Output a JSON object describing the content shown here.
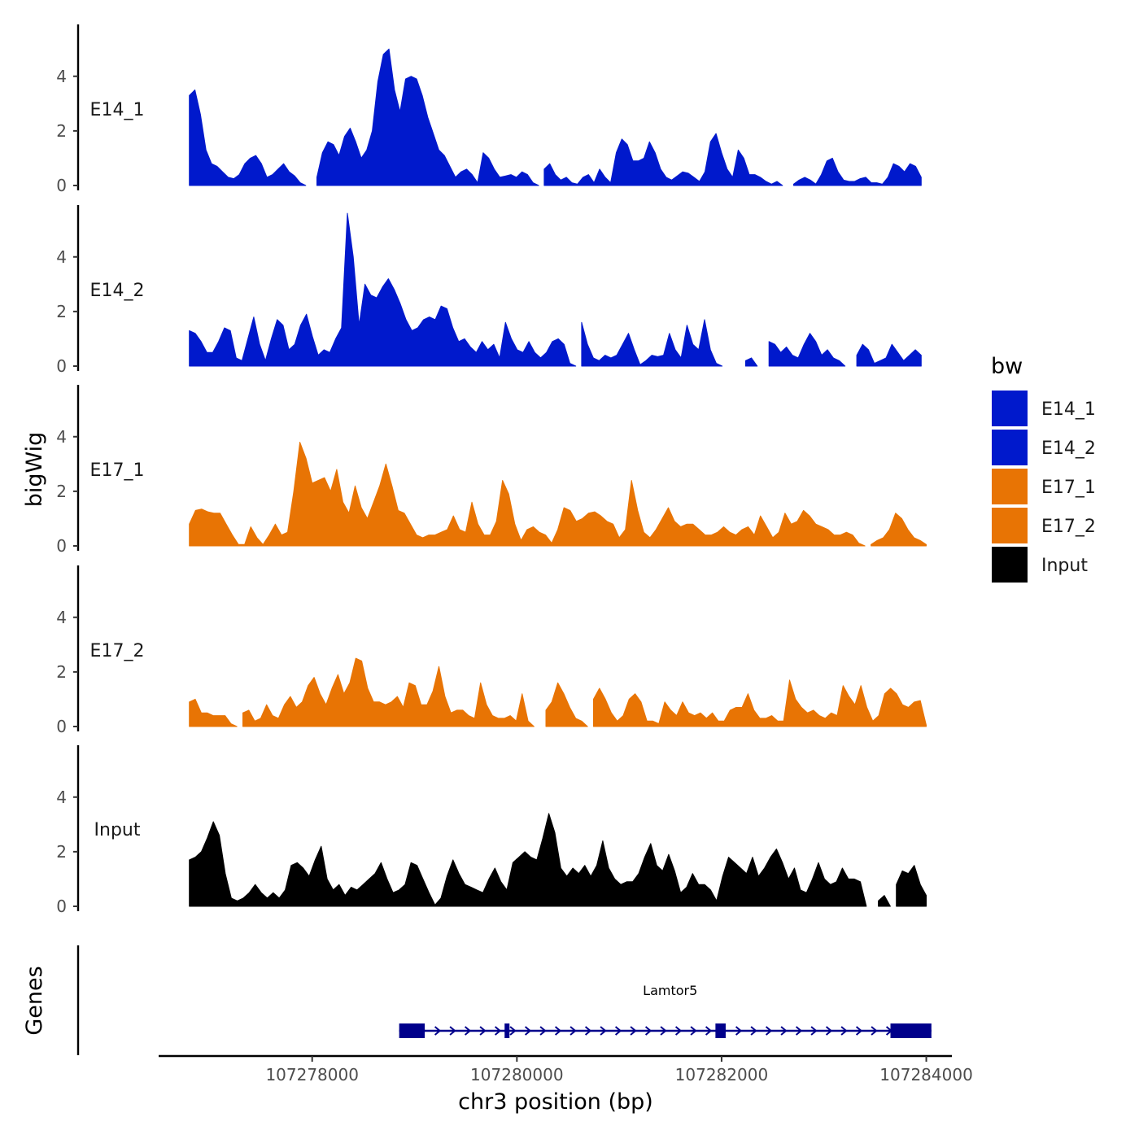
{
  "chart_data": {
    "type": "area",
    "region": "chr3",
    "xlabel": "chr3 position (bp)",
    "ylabel": "bigWig",
    "xlim": [
      107276500,
      107284250
    ],
    "ylim": [
      0,
      5.9
    ],
    "x_ticks": [
      107278000,
      107280000,
      107282000,
      107284000
    ],
    "x_tick_labels": [
      "107278000",
      "107280000",
      "107282000",
      "107284000"
    ],
    "y_ticks": [
      0,
      2,
      4
    ],
    "y_tick_labels": [
      "0",
      "2",
      "4"
    ],
    "legend_title": "bw",
    "legend": [
      {
        "name": "E14_1",
        "color": "#0019cc"
      },
      {
        "name": "E14_2",
        "color": "#0019cc"
      },
      {
        "name": "E17_1",
        "color": "#e87404"
      },
      {
        "name": "E17_2",
        "color": "#e87404"
      },
      {
        "name": "Input",
        "color": "#000000"
      }
    ],
    "series": [
      {
        "name": "E14_1",
        "color": "#0019cc",
        "x_start": 107276800,
        "x_end": 107283950,
        "values": [
          3.3,
          3.5,
          2.6,
          1.3,
          0.8,
          0.7,
          0.5,
          0.3,
          0.25,
          0.4,
          0.8,
          1.0,
          1.1,
          0.8,
          0.3,
          0.4,
          0.6,
          0.8,
          0.5,
          0.35,
          0.1,
          0,
          0,
          0.3,
          1.2,
          1.6,
          1.5,
          1.1,
          1.8,
          2.1,
          1.6,
          1.0,
          1.3,
          2.0,
          3.8,
          4.8,
          5.0,
          3.5,
          2.7,
          3.9,
          4.0,
          3.9,
          3.3,
          2.5,
          1.9,
          1.3,
          1.1,
          0.7,
          0.3,
          0.5,
          0.6,
          0.4,
          0.1,
          1.2,
          1.0,
          0.6,
          0.3,
          0.35,
          0.4,
          0.3,
          0.5,
          0.4,
          0.1,
          0,
          0.6,
          0.8,
          0.4,
          0.2,
          0.3,
          0.1,
          0.05,
          0.3,
          0.4,
          0.1,
          0.6,
          0.3,
          0.1,
          1.2,
          1.7,
          1.5,
          0.9,
          0.9,
          1.0,
          1.6,
          1.2,
          0.6,
          0.3,
          0.2,
          0.35,
          0.5,
          0.45,
          0.3,
          0.15,
          0.5,
          1.6,
          1.9,
          1.2,
          0.6,
          0.3,
          1.3,
          1.0,
          0.4,
          0.4,
          0.3,
          0.15,
          0.05,
          0.15,
          0,
          0,
          0.05,
          0.2,
          0.3,
          0.2,
          0.05,
          0.4,
          0.9,
          1.0,
          0.5,
          0.2,
          0.15,
          0.15,
          0.25,
          0.3,
          0.1,
          0.1,
          0.05,
          0.3,
          0.8,
          0.7,
          0.5,
          0.8,
          0.7,
          0.3
        ]
      },
      {
        "name": "E14_2",
        "color": "#0019cc",
        "x_start": 107276800,
        "x_end": 107283950,
        "values": [
          1.3,
          1.2,
          0.9,
          0.5,
          0.5,
          0.9,
          1.4,
          1.3,
          0.3,
          0.2,
          1.0,
          1.8,
          0.8,
          0.2,
          1.0,
          1.7,
          1.5,
          0.6,
          0.8,
          1.5,
          1.9,
          1.1,
          0.4,
          0.6,
          0.5,
          1.0,
          1.4,
          5.6,
          4.0,
          1.5,
          3.0,
          2.6,
          2.5,
          2.9,
          3.2,
          2.8,
          2.3,
          1.7,
          1.3,
          1.4,
          1.7,
          1.8,
          1.7,
          2.2,
          2.1,
          1.4,
          0.9,
          1.0,
          0.7,
          0.5,
          0.9,
          0.6,
          0.8,
          0.3,
          1.6,
          1.0,
          0.6,
          0.5,
          0.9,
          0.5,
          0.3,
          0.5,
          0.9,
          1.0,
          0.8,
          0.1,
          0,
          1.6,
          0.8,
          0.3,
          0.2,
          0.4,
          0.3,
          0.4,
          0.8,
          1.2,
          0.6,
          0.05,
          0.2,
          0.4,
          0.35,
          0.4,
          1.2,
          0.6,
          0.3,
          1.5,
          0.8,
          0.6,
          1.7,
          0.6,
          0.1,
          0,
          0,
          0,
          0,
          0.2,
          0.3,
          0,
          0,
          0.9,
          0.8,
          0.5,
          0.7,
          0.4,
          0.3,
          0.8,
          1.2,
          0.9,
          0.4,
          0.6,
          0.3,
          0.2,
          0,
          0,
          0.4,
          0.8,
          0.6,
          0.1,
          0.2,
          0.3,
          0.8,
          0.5,
          0.2,
          0.4,
          0.6,
          0.4
        ]
      },
      {
        "name": "E17_1",
        "color": "#e87404",
        "x_start": 107276800,
        "x_end": 107284000,
        "values": [
          0.8,
          1.3,
          1.35,
          1.25,
          1.2,
          1.2,
          0.8,
          0.4,
          0.05,
          0.05,
          0.7,
          0.3,
          0.05,
          0.4,
          0.8,
          0.4,
          0.5,
          2.0,
          3.8,
          3.2,
          2.3,
          2.4,
          2.5,
          2.0,
          2.8,
          1.6,
          1.2,
          2.2,
          1.4,
          1.0,
          1.6,
          2.2,
          3.0,
          2.2,
          1.3,
          1.2,
          0.8,
          0.4,
          0.3,
          0.4,
          0.4,
          0.5,
          0.6,
          1.1,
          0.6,
          0.5,
          1.6,
          0.8,
          0.4,
          0.4,
          0.9,
          2.4,
          1.9,
          0.8,
          0.2,
          0.6,
          0.7,
          0.5,
          0.4,
          0.1,
          0.6,
          1.4,
          1.3,
          0.9,
          1.0,
          1.2,
          1.25,
          1.1,
          0.9,
          0.8,
          0.3,
          0.6,
          2.4,
          1.3,
          0.5,
          0.3,
          0.6,
          1.0,
          1.4,
          0.9,
          0.7,
          0.8,
          0.8,
          0.6,
          0.4,
          0.4,
          0.5,
          0.7,
          0.5,
          0.4,
          0.6,
          0.7,
          0.4,
          1.1,
          0.7,
          0.3,
          0.5,
          1.2,
          0.8,
          0.9,
          1.3,
          1.1,
          0.8,
          0.7,
          0.6,
          0.4,
          0.4,
          0.5,
          0.4,
          0.1,
          0,
          0.05,
          0.2,
          0.3,
          0.6,
          1.2,
          1.0,
          0.6,
          0.3,
          0.2,
          0.05
        ]
      },
      {
        "name": "E17_2",
        "color": "#e87404",
        "x_start": 107276800,
        "x_end": 107284000,
        "values": [
          0.9,
          1.0,
          0.5,
          0.5,
          0.4,
          0.4,
          0.4,
          0.1,
          0,
          0.5,
          0.6,
          0.2,
          0.3,
          0.8,
          0.4,
          0.3,
          0.8,
          1.1,
          0.7,
          0.9,
          1.5,
          1.8,
          1.2,
          0.8,
          1.4,
          1.9,
          1.2,
          1.6,
          2.5,
          2.4,
          1.4,
          0.9,
          0.9,
          0.8,
          0.9,
          1.1,
          0.7,
          1.6,
          1.5,
          0.8,
          0.8,
          1.3,
          2.2,
          1.1,
          0.5,
          0.6,
          0.6,
          0.4,
          0.3,
          1.6,
          0.8,
          0.4,
          0.3,
          0.3,
          0.4,
          0.2,
          1.2,
          0.2,
          0,
          0,
          0.6,
          0.9,
          1.6,
          1.2,
          0.7,
          0.3,
          0.2,
          0,
          1.0,
          1.4,
          1.0,
          0.5,
          0.2,
          0.4,
          1.0,
          1.2,
          0.9,
          0.2,
          0.2,
          0.1,
          0.9,
          0.6,
          0.4,
          0.9,
          0.5,
          0.4,
          0.5,
          0.3,
          0.5,
          0.2,
          0.2,
          0.6,
          0.7,
          0.7,
          1.2,
          0.6,
          0.3,
          0.3,
          0.4,
          0.2,
          0.2,
          1.7,
          1.0,
          0.7,
          0.5,
          0.6,
          0.4,
          0.3,
          0.5,
          0.4,
          1.5,
          1.1,
          0.8,
          1.5,
          0.7,
          0.2,
          0.4,
          1.2,
          1.4,
          1.2,
          0.8,
          0.7,
          0.9,
          0.95,
          0.05
        ]
      },
      {
        "name": "Input",
        "color": "#000000",
        "x_start": 107276800,
        "x_end": 107284000,
        "values": [
          1.7,
          1.8,
          2.0,
          2.5,
          3.1,
          2.6,
          1.2,
          0.3,
          0.2,
          0.3,
          0.5,
          0.8,
          0.5,
          0.3,
          0.5,
          0.3,
          0.6,
          1.5,
          1.6,
          1.4,
          1.1,
          1.7,
          2.2,
          1.0,
          0.6,
          0.8,
          0.4,
          0.7,
          0.6,
          0.8,
          1.0,
          1.2,
          1.6,
          1.0,
          0.5,
          0.6,
          0.8,
          1.6,
          1.5,
          1.0,
          0.5,
          0.05,
          0.3,
          1.1,
          1.7,
          1.2,
          0.8,
          0.7,
          0.6,
          0.5,
          1.0,
          1.4,
          0.9,
          0.6,
          1.6,
          1.8,
          2.0,
          1.8,
          1.7,
          2.5,
          3.4,
          2.7,
          1.4,
          1.1,
          1.4,
          1.2,
          1.5,
          1.1,
          1.5,
          2.4,
          1.4,
          1.0,
          0.8,
          0.9,
          0.9,
          1.2,
          1.8,
          2.3,
          1.5,
          1.3,
          1.9,
          1.3,
          0.5,
          0.7,
          1.2,
          0.8,
          0.8,
          0.6,
          0.2,
          1.1,
          1.8,
          1.6,
          1.4,
          1.2,
          1.8,
          1.1,
          1.4,
          1.8,
          2.1,
          1.6,
          1.0,
          1.4,
          0.6,
          0.5,
          1.0,
          1.6,
          1.0,
          0.8,
          0.9,
          1.4,
          1.0,
          1.0,
          0.9,
          0,
          0,
          0.2,
          0.4,
          0,
          0.8,
          1.3,
          1.2,
          1.5,
          0.8,
          0.4
        ]
      }
    ],
    "genes_track": {
      "ylabel": "Genes",
      "genes": [
        {
          "name": "Lamtor5",
          "strand": "+",
          "start": 107278850,
          "end": 107284050,
          "exons": [
            [
              107278850,
              107279100
            ],
            [
              107279880,
              107279920
            ],
            [
              107281940,
              107282040
            ],
            [
              107283650,
              107284050
            ]
          ]
        }
      ]
    }
  }
}
